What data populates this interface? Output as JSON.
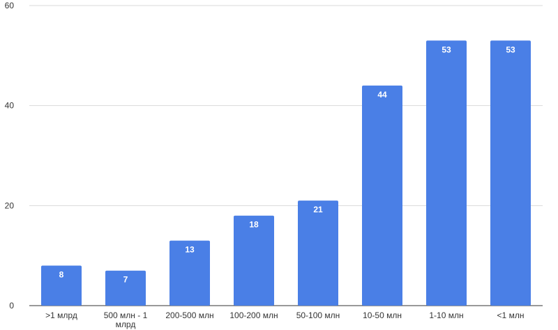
{
  "chart_data": {
    "type": "bar",
    "categories": [
      ">1 млрд",
      "500 млн - 1 млрд",
      "200-500 млн",
      "100-200 млн",
      "50-100 млн",
      "10-50 млн",
      "1-10 млн",
      "<1 млн"
    ],
    "category_lines": [
      [
        ">1 млрд"
      ],
      [
        "500 млн - 1",
        "млрд"
      ],
      [
        "200-500 млн"
      ],
      [
        "100-200 млн"
      ],
      [
        "50-100 млн"
      ],
      [
        "10-50 млн"
      ],
      [
        "1-10 млн"
      ],
      [
        "<1 млн"
      ]
    ],
    "values": [
      8,
      7,
      13,
      18,
      21,
      44,
      53,
      53
    ],
    "ylim": [
      0,
      60
    ],
    "yticks": [
      0,
      20,
      40,
      60
    ],
    "grid": true,
    "data_labels": true,
    "bar_color": "#4a7fe6",
    "title": "",
    "xlabel": "",
    "ylabel": ""
  }
}
